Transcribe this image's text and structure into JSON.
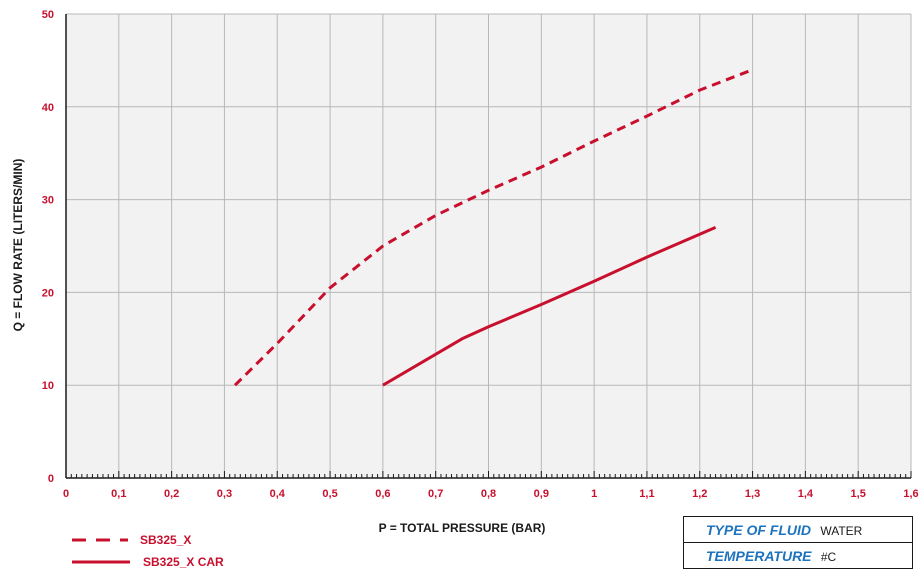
{
  "chart_data": {
    "type": "line",
    "xlabel": "P = TOTAL PRESSURE (BAR)",
    "ylabel": "Q = FLOW RATE (LITERS/MIN)",
    "x_ticks": [
      "0",
      "0,1",
      "0,2",
      "0,3",
      "0,4",
      "0,5",
      "0,6",
      "0,7",
      "0,8",
      "0,9",
      "1",
      "1,1",
      "1,2",
      "1,3",
      "1,4",
      "1,5",
      "1,6"
    ],
    "y_ticks": [
      "0",
      "10",
      "20",
      "30",
      "40",
      "50"
    ],
    "xlim": [
      0,
      1.6
    ],
    "ylim": [
      0,
      50
    ],
    "grid": true,
    "legend_position": "bottom-left",
    "series": [
      {
        "name": "SB325_X",
        "style": "dashed",
        "color": "#c8102e",
        "points": [
          [
            0.32,
            10
          ],
          [
            0.4,
            14.5
          ],
          [
            0.5,
            20.5
          ],
          [
            0.6,
            25
          ],
          [
            0.7,
            28.3
          ],
          [
            0.8,
            31
          ],
          [
            0.9,
            33.5
          ],
          [
            1.0,
            36.3
          ],
          [
            1.1,
            39
          ],
          [
            1.2,
            41.8
          ],
          [
            1.3,
            44
          ]
        ]
      },
      {
        "name": "SB325_X CAR",
        "style": "solid",
        "color": "#c8102e",
        "points": [
          [
            0.6,
            10
          ],
          [
            0.75,
            15
          ],
          [
            0.8,
            16.3
          ],
          [
            0.9,
            18.7
          ],
          [
            1.0,
            21.2
          ],
          [
            1.1,
            23.8
          ],
          [
            1.23,
            27
          ]
        ]
      }
    ]
  },
  "info_table": {
    "rows": [
      {
        "label": "TYPE OF FLUID",
        "value": "WATER"
      },
      {
        "label": "TEMPERATURE",
        "value": "#C"
      }
    ]
  }
}
